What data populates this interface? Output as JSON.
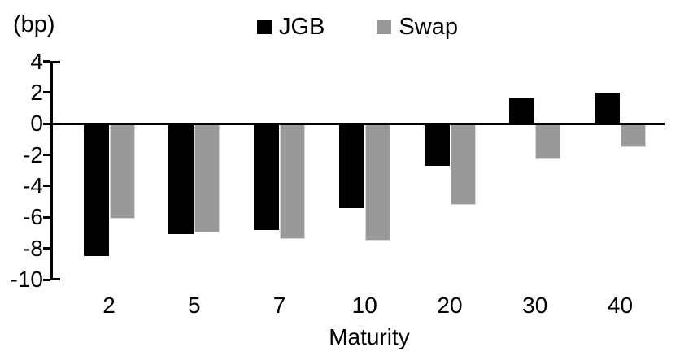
{
  "chart_data": {
    "type": "bar",
    "title": "",
    "unit_label": "(bp)",
    "xlabel": "Maturity",
    "categories": [
      "2",
      "5",
      "7",
      "10",
      "20",
      "30",
      "40"
    ],
    "series": [
      {
        "name": "JGB",
        "color": "#000000",
        "values": [
          -8.5,
          -7.1,
          -6.8,
          -5.4,
          -2.7,
          1.7,
          2.0
        ]
      },
      {
        "name": "Swap",
        "color": "#999999",
        "values": [
          -6.1,
          -7.0,
          -7.4,
          -7.5,
          -5.2,
          -2.3,
          -1.5
        ]
      }
    ],
    "y_ticks": [
      4,
      2,
      0,
      -2,
      -4,
      -6,
      -8,
      -10
    ],
    "ylim": [
      -10,
      4
    ],
    "legend_position": "top",
    "grid": false,
    "axis_color": "#000000",
    "background_color": "#ffffff"
  }
}
